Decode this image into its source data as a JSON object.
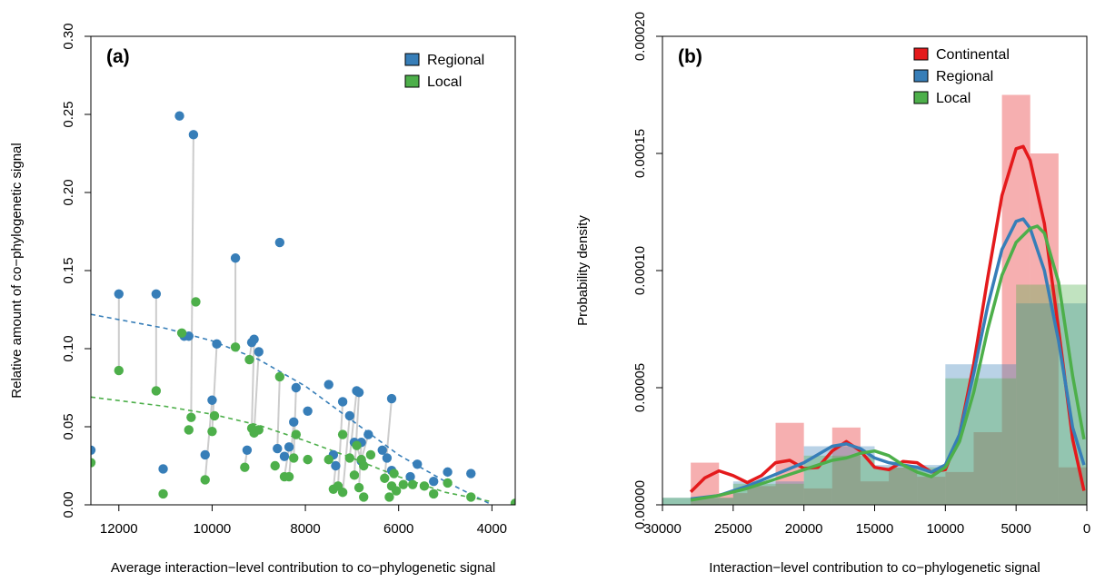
{
  "chart_data": [
    {
      "panel_label": "(a)",
      "type": "scatter",
      "xlabel": "Average interaction−level contribution to co−phylogenetic signal",
      "ylabel": "Relative amount of co−phylogenetic signal",
      "xlim": [
        12600,
        3500
      ],
      "ylim": [
        0,
        0.3
      ],
      "x_reversed": true,
      "xticks": [
        12000,
        10000,
        8000,
        6000,
        4000
      ],
      "xtick_labels": [
        "12000",
        "10000",
        "8000",
        "6000",
        "4000"
      ],
      "yticks": [
        0,
        0.05,
        0.1,
        0.15,
        0.2,
        0.25,
        0.3
      ],
      "ytick_labels": [
        "0.00",
        "0.05",
        "0.10",
        "0.15",
        "0.20",
        "0.25",
        "0.30"
      ],
      "legend": {
        "position": "top-right",
        "entries": [
          "Regional",
          "Local"
        ]
      },
      "colors": {
        "Regional": "#377eb8",
        "Local": "#4daf4a",
        "connector": "#cccccc"
      },
      "series": [
        {
          "name": "Regional",
          "points": [
            [
              12600,
              0.035
            ],
            [
              12000,
              0.135
            ],
            [
              11200,
              0.135
            ],
            [
              10600,
              0.108
            ],
            [
              10500,
              0.108
            ],
            [
              10700,
              0.249
            ],
            [
              10400,
              0.237
            ],
            [
              11050,
              0.023
            ],
            [
              10000,
              0.067
            ],
            [
              9900,
              0.103
            ],
            [
              10150,
              0.032
            ],
            [
              9500,
              0.158
            ],
            [
              9250,
              0.035
            ],
            [
              9150,
              0.104
            ],
            [
              9100,
              0.106
            ],
            [
              9000,
              0.098
            ],
            [
              8550,
              0.168
            ],
            [
              8600,
              0.036
            ],
            [
              8450,
              0.031
            ],
            [
              8350,
              0.037
            ],
            [
              8250,
              0.053
            ],
            [
              8200,
              0.075
            ],
            [
              7950,
              0.06
            ],
            [
              7500,
              0.077
            ],
            [
              7400,
              0.032
            ],
            [
              7350,
              0.025
            ],
            [
              7200,
              0.066
            ],
            [
              7050,
              0.057
            ],
            [
              6950,
              0.04
            ],
            [
              6900,
              0.073
            ],
            [
              6850,
              0.072
            ],
            [
              6800,
              0.028
            ],
            [
              6800,
              0.04
            ],
            [
              6650,
              0.045
            ],
            [
              6350,
              0.035
            ],
            [
              6250,
              0.03
            ],
            [
              6150,
              0.022
            ],
            [
              6150,
              0.068
            ],
            [
              5750,
              0.018
            ],
            [
              5600,
              0.026
            ],
            [
              5250,
              0.015
            ],
            [
              4950,
              0.021
            ],
            [
              4450,
              0.02
            ]
          ]
        },
        {
          "name": "Local",
          "points": [
            [
              12600,
              0.027
            ],
            [
              12000,
              0.086
            ],
            [
              11200,
              0.073
            ],
            [
              11050,
              0.007
            ],
            [
              10650,
              0.11
            ],
            [
              10500,
              0.048
            ],
            [
              10450,
              0.056
            ],
            [
              10350,
              0.13
            ],
            [
              10150,
              0.016
            ],
            [
              10000,
              0.047
            ],
            [
              9950,
              0.057
            ],
            [
              9500,
              0.101
            ],
            [
              9300,
              0.024
            ],
            [
              9200,
              0.093
            ],
            [
              9150,
              0.049
            ],
            [
              9100,
              0.046
            ],
            [
              9000,
              0.048
            ],
            [
              8550,
              0.082
            ],
            [
              8650,
              0.025
            ],
            [
              8450,
              0.018
            ],
            [
              8350,
              0.018
            ],
            [
              8250,
              0.03
            ],
            [
              8200,
              0.045
            ],
            [
              7950,
              0.029
            ],
            [
              7500,
              0.029
            ],
            [
              7400,
              0.01
            ],
            [
              7300,
              0.012
            ],
            [
              7200,
              0.008
            ],
            [
              7200,
              0.045
            ],
            [
              7050,
              0.03
            ],
            [
              6950,
              0.019
            ],
            [
              6900,
              0.038
            ],
            [
              6850,
              0.011
            ],
            [
              6800,
              0.029
            ],
            [
              6750,
              0.005
            ],
            [
              6750,
              0.025
            ],
            [
              6600,
              0.032
            ],
            [
              6300,
              0.017
            ],
            [
              6200,
              0.005
            ],
            [
              6150,
              0.012
            ],
            [
              6100,
              0.02
            ],
            [
              6050,
              0.009
            ],
            [
              5900,
              0.013
            ],
            [
              5700,
              0.013
            ],
            [
              5450,
              0.012
            ],
            [
              5250,
              0.007
            ],
            [
              4950,
              0.014
            ],
            [
              4450,
              0.005
            ],
            [
              3500,
              0.001
            ]
          ]
        }
      ],
      "trend_lines": [
        {
          "name": "Regional",
          "points": [
            [
              12600,
              0.122
            ],
            [
              11000,
              0.113
            ],
            [
              10000,
              0.105
            ],
            [
              9000,
              0.093
            ],
            [
              8000,
              0.076
            ],
            [
              7000,
              0.054
            ],
            [
              6000,
              0.032
            ],
            [
              5000,
              0.015
            ],
            [
              4000,
              0.0
            ]
          ]
        },
        {
          "name": "Local",
          "points": [
            [
              12600,
              0.069
            ],
            [
              11000,
              0.063
            ],
            [
              10000,
              0.058
            ],
            [
              9000,
              0.051
            ],
            [
              8000,
              0.041
            ],
            [
              7000,
              0.03
            ],
            [
              6000,
              0.018
            ],
            [
              5000,
              0.008
            ],
            [
              4000,
              0.002
            ]
          ]
        }
      ]
    },
    {
      "panel_label": "(b)",
      "type": "histogram",
      "xlabel": "Interaction−level contribution to co−phylogenetic signal",
      "ylabel": "Probability density",
      "xlim": [
        30000,
        0
      ],
      "ylim": [
        0,
        0.0002
      ],
      "x_reversed": true,
      "xticks": [
        30000,
        25000,
        20000,
        15000,
        10000,
        5000,
        0
      ],
      "xtick_labels": [
        "30000",
        "25000",
        "20000",
        "15000",
        "10000",
        "5000",
        "0"
      ],
      "yticks": [
        0,
        5e-05,
        0.0001,
        0.00015,
        0.0002
      ],
      "ytick_labels": [
        "0.00000",
        "0.00005",
        "0.00010",
        "0.00015",
        "0.00020"
      ],
      "legend": {
        "position": "top-right",
        "entries": [
          "Continental",
          "Regional",
          "Local"
        ]
      },
      "colors": {
        "Continental": "#e41a1c",
        "Regional": "#377eb8",
        "Local": "#4daf4a"
      },
      "series": [
        {
          "name": "Continental",
          "bins": [
            [
              28000,
              26000,
              1.8e-05
            ],
            [
              26000,
              24000,
              5e-06
            ],
            [
              24000,
              22000,
              8e-06
            ],
            [
              22000,
              20000,
              3.5e-05
            ],
            [
              20000,
              18000,
              7e-06
            ],
            [
              18000,
              16000,
              3.3e-05
            ],
            [
              16000,
              14000,
              1e-05
            ],
            [
              14000,
              12000,
              1.6e-05
            ],
            [
              12000,
              10000,
              1.2e-05
            ],
            [
              10000,
              8000,
              1.4e-05
            ],
            [
              8000,
              6000,
              3.1e-05
            ],
            [
              6000,
              4000,
              0.000175
            ],
            [
              4000,
              2000,
              0.00015
            ],
            [
              2000,
              0,
              1.6e-05
            ]
          ]
        },
        {
          "name": "Regional",
          "bins": [
            [
              30000,
              25000,
              3e-06
            ],
            [
              25000,
              20000,
              1e-05
            ],
            [
              20000,
              15000,
              2.5e-05
            ],
            [
              15000,
              10000,
              1.7e-05
            ],
            [
              10000,
              5000,
              6e-05
            ],
            [
              5000,
              0,
              8.6e-05
            ]
          ]
        },
        {
          "name": "Local",
          "bins": [
            [
              30000,
              25000,
              3e-06
            ],
            [
              25000,
              20000,
              9e-06
            ],
            [
              20000,
              15000,
              2.1e-05
            ],
            [
              15000,
              10000,
              1.6e-05
            ],
            [
              10000,
              5000,
              5.4e-05
            ],
            [
              5000,
              0,
              9.4e-05
            ]
          ]
        }
      ],
      "density_curves": [
        {
          "name": "Continental",
          "points": [
            [
              28000,
              5.5e-06
            ],
            [
              27000,
              1.15e-05
            ],
            [
              26000,
              1.45e-05
            ],
            [
              25000,
              1.25e-05
            ],
            [
              24000,
              9.5e-06
            ],
            [
              23000,
              1.25e-05
            ],
            [
              22000,
              1.8e-05
            ],
            [
              21000,
              1.9e-05
            ],
            [
              20000,
              1.55e-05
            ],
            [
              19000,
              1.6e-05
            ],
            [
              18000,
              2.3e-05
            ],
            [
              17000,
              2.7e-05
            ],
            [
              16000,
              2.3e-05
            ],
            [
              15000,
              1.6e-05
            ],
            [
              14000,
              1.5e-05
            ],
            [
              13000,
              1.85e-05
            ],
            [
              12000,
              1.8e-05
            ],
            [
              11000,
              1.4e-05
            ],
            [
              10000,
              1.5e-05
            ],
            [
              9000,
              3e-05
            ],
            [
              8000,
              6e-05
            ],
            [
              7000,
              9.7e-05
            ],
            [
              6000,
              0.000132
            ],
            [
              5000,
              0.000152
            ],
            [
              4500,
              0.000153
            ],
            [
              4000,
              0.000147
            ],
            [
              3000,
              0.00012
            ],
            [
              2000,
              7.5e-05
            ],
            [
              1000,
              2.8e-05
            ],
            [
              200,
              6e-06
            ]
          ]
        },
        {
          "name": "Regional",
          "points": [
            [
              28000,
              2.5e-06
            ],
            [
              26000,
              4e-06
            ],
            [
              24000,
              8e-06
            ],
            [
              22000,
              1.3e-05
            ],
            [
              20000,
              1.8e-05
            ],
            [
              18000,
              2.5e-05
            ],
            [
              17000,
              2.6e-05
            ],
            [
              16000,
              2.4e-05
            ],
            [
              15000,
              2e-05
            ],
            [
              14000,
              1.8e-05
            ],
            [
              13000,
              1.7e-05
            ],
            [
              12000,
              1.6e-05
            ],
            [
              11000,
              1.4e-05
            ],
            [
              10000,
              1.7e-05
            ],
            [
              9000,
              3e-05
            ],
            [
              8000,
              5.6e-05
            ],
            [
              7000,
              8.5e-05
            ],
            [
              6000,
              0.000109
            ],
            [
              5000,
              0.000121
            ],
            [
              4500,
              0.000122
            ],
            [
              4000,
              0.000118
            ],
            [
              3000,
              0.0001
            ],
            [
              2000,
              7e-05
            ],
            [
              1000,
              3.3e-05
            ],
            [
              200,
              1.7e-05
            ]
          ]
        },
        {
          "name": "Local",
          "points": [
            [
              28000,
              2e-06
            ],
            [
              26000,
              4e-06
            ],
            [
              24000,
              7e-06
            ],
            [
              22000,
              1.1e-05
            ],
            [
              20000,
              1.5e-05
            ],
            [
              18000,
              1.9e-05
            ],
            [
              17000,
              2e-05
            ],
            [
              16000,
              2.2e-05
            ],
            [
              15000,
              2.3e-05
            ],
            [
              14000,
              2.1e-05
            ],
            [
              13000,
              1.7e-05
            ],
            [
              12000,
              1.4e-05
            ],
            [
              11000,
              1.2e-05
            ],
            [
              10000,
              1.6e-05
            ],
            [
              9000,
              2.7e-05
            ],
            [
              8000,
              4.8e-05
            ],
            [
              7000,
              7.5e-05
            ],
            [
              6000,
              9.8e-05
            ],
            [
              5000,
              0.000112
            ],
            [
              4000,
              0.000118
            ],
            [
              3500,
              0.000119
            ],
            [
              3000,
              0.000116
            ],
            [
              2000,
              9.5e-05
            ],
            [
              1000,
              5.5e-05
            ],
            [
              200,
              2.8e-05
            ]
          ]
        }
      ]
    }
  ]
}
